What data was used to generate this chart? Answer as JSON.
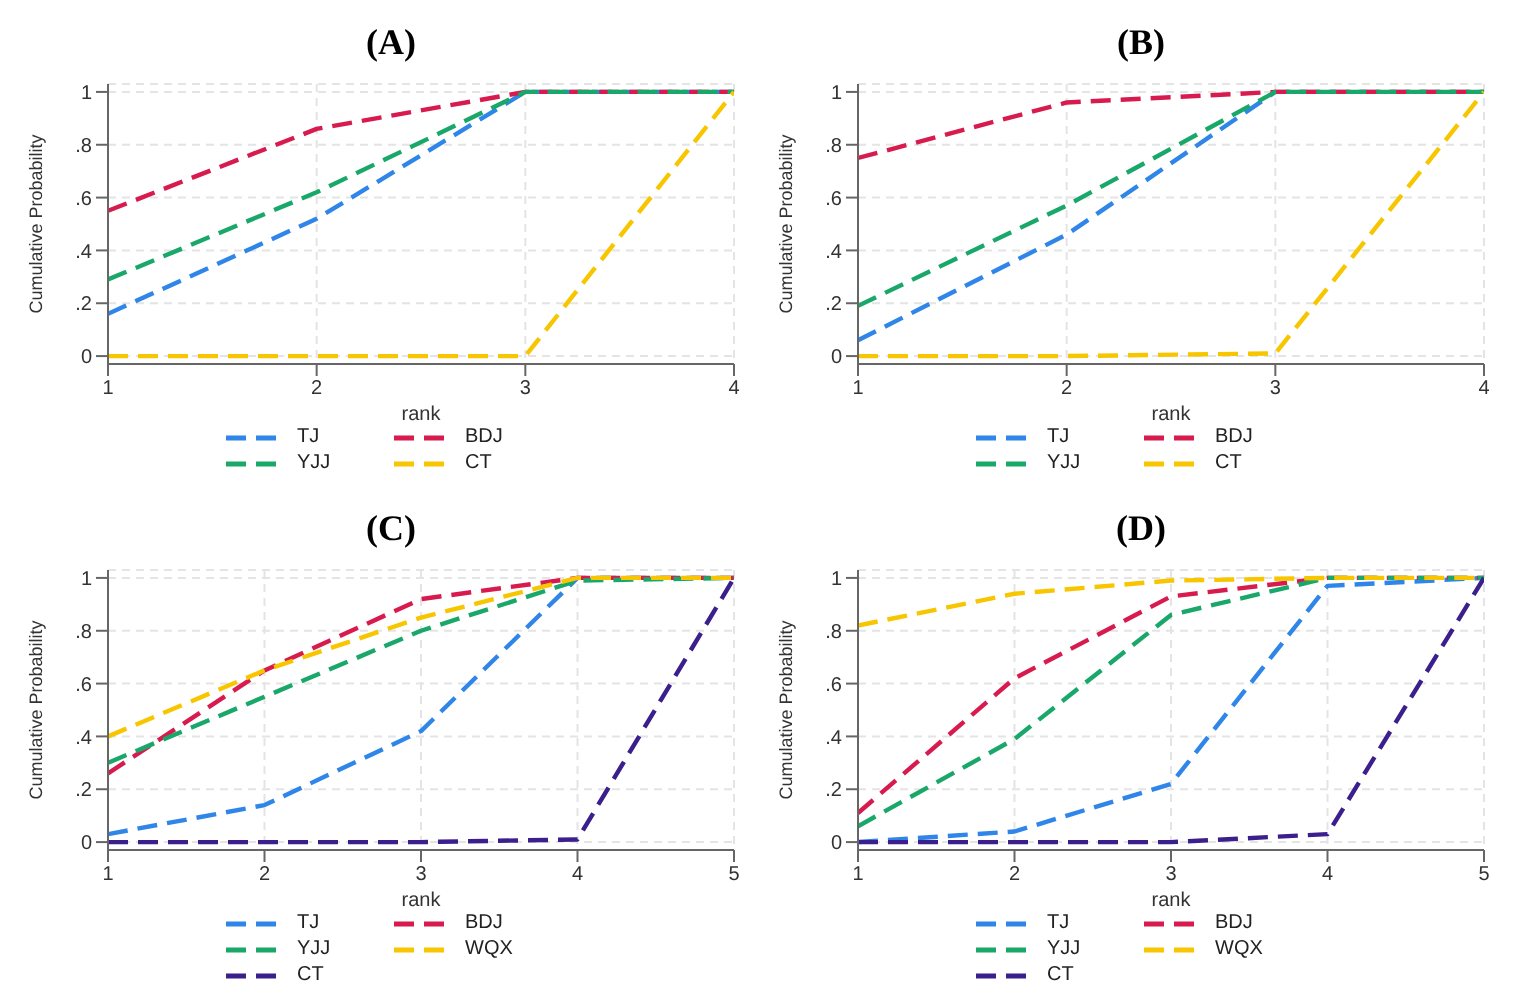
{
  "chart_data": [
    {
      "type": "line",
      "title": "(A)",
      "xlabel": "rank",
      "ylabel": "Cumulative Probability",
      "x": [
        1,
        2,
        3,
        4
      ],
      "xlim": [
        1,
        4
      ],
      "xticks": [
        1,
        2,
        3,
        4
      ],
      "ylim": [
        -0.03,
        1.03
      ],
      "yticks": [
        {
          "value": 0,
          "label": "0"
        },
        {
          "value": 0.2,
          "label": ".2"
        },
        {
          "value": 0.4,
          "label": ".4"
        },
        {
          "value": 0.6,
          "label": ".6"
        },
        {
          "value": 0.8,
          "label": ".8"
        },
        {
          "value": 1,
          "label": "1"
        }
      ],
      "grid": true,
      "legend": "bottom",
      "line_style": "dashed",
      "marker": "none",
      "series": [
        {
          "name": "TJ",
          "color": "#2f86e8",
          "values": [
            0.16,
            0.52,
            1,
            1
          ]
        },
        {
          "name": "BDJ",
          "color": "#d81b4f",
          "values": [
            0.55,
            0.86,
            1,
            1
          ]
        },
        {
          "name": "YJJ",
          "color": "#1aa86a",
          "values": [
            0.29,
            0.62,
            1,
            1
          ]
        },
        {
          "name": "CT",
          "color": "#f7c600",
          "values": [
            0,
            0,
            0,
            1
          ]
        }
      ]
    },
    {
      "type": "line",
      "title": "(B)",
      "xlabel": "rank",
      "ylabel": "Cumulative Probability",
      "x": [
        1,
        2,
        3,
        4
      ],
      "xlim": [
        1,
        4
      ],
      "xticks": [
        1,
        2,
        3,
        4
      ],
      "ylim": [
        -0.03,
        1.03
      ],
      "yticks": [
        {
          "value": 0,
          "label": "0"
        },
        {
          "value": 0.2,
          "label": ".2"
        },
        {
          "value": 0.4,
          "label": ".4"
        },
        {
          "value": 0.6,
          "label": ".6"
        },
        {
          "value": 0.8,
          "label": ".8"
        },
        {
          "value": 1,
          "label": "1"
        }
      ],
      "grid": true,
      "legend": "bottom",
      "line_style": "dashed",
      "marker": "none",
      "series": [
        {
          "name": "TJ",
          "color": "#2f86e8",
          "values": [
            0.06,
            0.46,
            1,
            1
          ]
        },
        {
          "name": "BDJ",
          "color": "#d81b4f",
          "values": [
            0.75,
            0.96,
            1,
            1
          ]
        },
        {
          "name": "YJJ",
          "color": "#1aa86a",
          "values": [
            0.19,
            0.57,
            1,
            1
          ]
        },
        {
          "name": "CT",
          "color": "#f7c600",
          "values": [
            0,
            0,
            0.01,
            1
          ]
        }
      ]
    },
    {
      "type": "line",
      "title": "(C)",
      "xlabel": "rank",
      "ylabel": "Cumulative Probability",
      "x": [
        1,
        2,
        3,
        4,
        5
      ],
      "xlim": [
        1,
        5
      ],
      "xticks": [
        1,
        2,
        3,
        4,
        5
      ],
      "ylim": [
        -0.03,
        1.03
      ],
      "yticks": [
        {
          "value": 0,
          "label": "0"
        },
        {
          "value": 0.2,
          "label": ".2"
        },
        {
          "value": 0.4,
          "label": ".4"
        },
        {
          "value": 0.6,
          "label": ".6"
        },
        {
          "value": 0.8,
          "label": ".8"
        },
        {
          "value": 1,
          "label": "1"
        }
      ],
      "grid": true,
      "legend": "bottom",
      "line_style": "dashed",
      "marker": "none",
      "series": [
        {
          "name": "TJ",
          "color": "#2f86e8",
          "values": [
            0.03,
            0.14,
            0.42,
            1,
            1
          ]
        },
        {
          "name": "BDJ",
          "color": "#d81b4f",
          "values": [
            0.26,
            0.65,
            0.92,
            1,
            1
          ]
        },
        {
          "name": "YJJ",
          "color": "#1aa86a",
          "values": [
            0.3,
            0.55,
            0.8,
            0.99,
            1
          ]
        },
        {
          "name": "WQX",
          "color": "#f7c600",
          "values": [
            0.4,
            0.65,
            0.85,
            1,
            1
          ]
        },
        {
          "name": "CT",
          "color": "#3b1f8c",
          "values": [
            0,
            0,
            0,
            0.01,
            1
          ]
        }
      ]
    },
    {
      "type": "line",
      "title": "(D)",
      "xlabel": "rank",
      "ylabel": "Cumulative Probability",
      "x": [
        1,
        2,
        3,
        4,
        5
      ],
      "xlim": [
        1,
        5
      ],
      "xticks": [
        1,
        2,
        3,
        4,
        5
      ],
      "ylim": [
        -0.03,
        1.03
      ],
      "yticks": [
        {
          "value": 0,
          "label": "0"
        },
        {
          "value": 0.2,
          "label": ".2"
        },
        {
          "value": 0.4,
          "label": ".4"
        },
        {
          "value": 0.6,
          "label": ".6"
        },
        {
          "value": 0.8,
          "label": ".8"
        },
        {
          "value": 1,
          "label": "1"
        }
      ],
      "grid": true,
      "legend": "bottom",
      "line_style": "dashed",
      "marker": "none",
      "series": [
        {
          "name": "TJ",
          "color": "#2f86e8",
          "values": [
            0,
            0.04,
            0.22,
            0.97,
            1
          ]
        },
        {
          "name": "BDJ",
          "color": "#d81b4f",
          "values": [
            0.11,
            0.62,
            0.93,
            1,
            1
          ]
        },
        {
          "name": "YJJ",
          "color": "#1aa86a",
          "values": [
            0.06,
            0.39,
            0.86,
            1,
            1
          ]
        },
        {
          "name": "WQX",
          "color": "#f7c600",
          "values": [
            0.82,
            0.94,
            0.99,
            1,
            1
          ]
        },
        {
          "name": "CT",
          "color": "#3b1f8c",
          "values": [
            0,
            0,
            0,
            0.03,
            1
          ]
        }
      ]
    }
  ]
}
